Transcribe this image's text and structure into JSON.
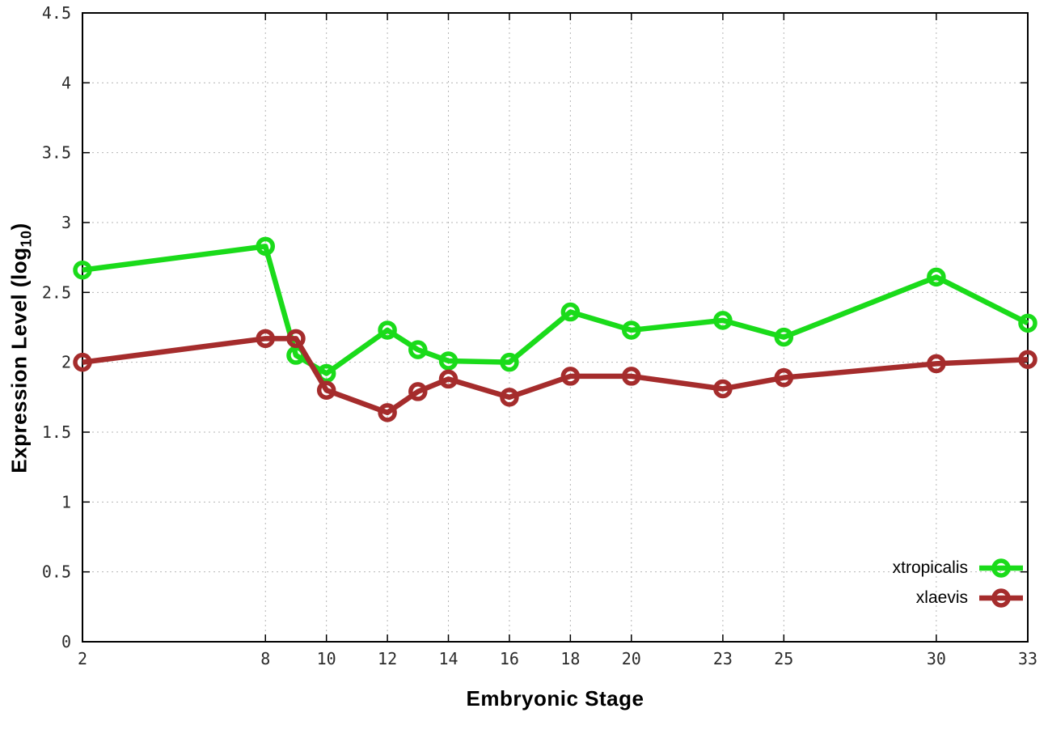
{
  "labels": {
    "xlabel": "Embryonic Stage",
    "ylabel_prefix": "Expression Level (log",
    "ylabel_sub": "10",
    "ylabel_suffix": ")"
  },
  "chart_data": {
    "type": "line",
    "title": "",
    "xlabel": "Embryonic Stage",
    "ylabel": "Expression Level (log10)",
    "x": [
      2,
      8,
      9,
      10,
      12,
      13,
      14,
      16,
      18,
      20,
      23,
      25,
      30,
      33
    ],
    "series": [
      {
        "name": "xtropicalis",
        "color": "#1adb1a",
        "values": [
          2.66,
          2.83,
          2.05,
          1.92,
          2.23,
          2.09,
          2.01,
          2.0,
          2.36,
          2.23,
          2.3,
          2.18,
          2.61,
          2.28
        ]
      },
      {
        "name": "xlaevis",
        "color": "#a52c2c",
        "values": [
          2.0,
          2.17,
          2.17,
          1.8,
          1.64,
          1.79,
          1.88,
          1.75,
          1.9,
          1.9,
          1.81,
          1.89,
          1.99,
          2.02
        ]
      }
    ],
    "xlim": [
      2,
      33
    ],
    "ylim": [
      0,
      4.5
    ],
    "xticks": [
      2,
      8,
      10,
      12,
      14,
      16,
      18,
      20,
      23,
      25,
      30,
      33
    ],
    "xtick_labels": [
      "2",
      "8",
      "10",
      "12",
      "14",
      "16",
      "18",
      "20",
      "23",
      "25",
      "30",
      "33"
    ],
    "yticks": [
      0,
      0.5,
      1,
      1.5,
      2,
      2.5,
      3,
      3.5,
      4,
      4.5
    ],
    "ytick_labels": [
      "0",
      "0.5",
      "1",
      "1.5",
      "2",
      "2.5",
      "3",
      "3.5",
      "4",
      "4.5"
    ],
    "grid": true,
    "grid_style": "dotted",
    "grid_color": "#b5b5b5",
    "border_color": "#000000",
    "tick_label_color": "#2b2b2b",
    "marker": "open-circle",
    "legend_position": "inside bottom-right"
  }
}
